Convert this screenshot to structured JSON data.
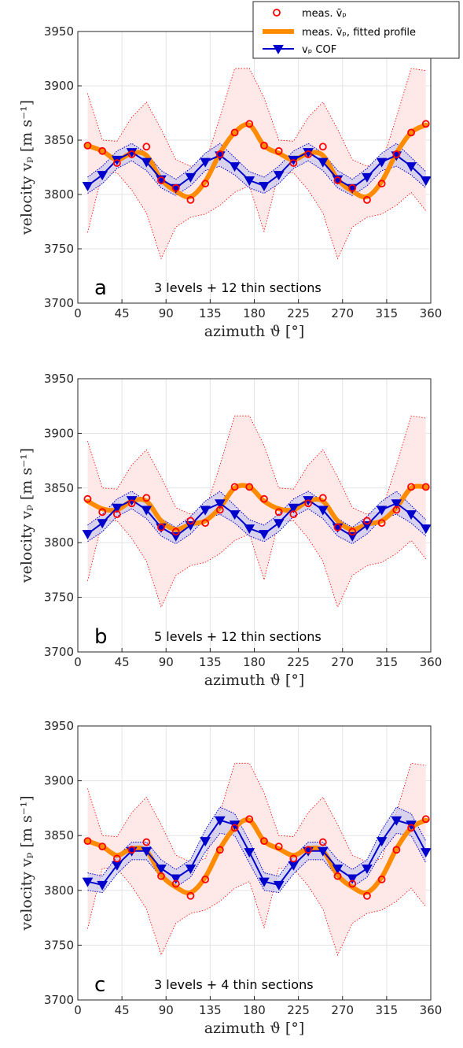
{
  "colors": {
    "measured": "#ff0000",
    "fitted": "#ff8c00",
    "cof": "#0000cc",
    "band": "#ffe8e8",
    "grid": "#e3e3e3"
  },
  "legend": {
    "entries": [
      "meas. v̄ₚ",
      "meas. v̄ₚ, fitted profile",
      "vₚ COF"
    ],
    "placement": "top-right"
  },
  "chart_data": [
    {
      "type": "line",
      "panel_letter": "a",
      "annotation": "3 levels + 12 thin sections",
      "xlabel": "azimuth ϑ [°]",
      "ylabel": "velocity vₚ [m s⁻¹]",
      "xlim": [
        0,
        360
      ],
      "ylim": [
        3700,
        3950
      ],
      "xticks": [
        "0",
        "45",
        "90",
        "135",
        "180",
        "225",
        "270",
        "315",
        "360"
      ],
      "yticks": [
        "3700",
        "3750",
        "3800",
        "3850",
        "3900",
        "3950"
      ],
      "grid": true,
      "measured": {
        "x": [
          10,
          25,
          40,
          55,
          70,
          85,
          100,
          115,
          130,
          145,
          160,
          175,
          190,
          205,
          220,
          235,
          250,
          265,
          280,
          295,
          310,
          325,
          340,
          355
        ],
        "y": [
          3845,
          3840,
          3829,
          3837,
          3844,
          3813,
          3806,
          3795,
          3810,
          3837,
          3857,
          3865,
          3845,
          3840,
          3829,
          3837,
          3844,
          3813,
          3806,
          3795,
          3810,
          3837,
          3857,
          3865
        ]
      },
      "band_upper": [
        3893,
        3850,
        3849,
        3871,
        3885,
        3860,
        3832,
        3826,
        3829,
        3871,
        3916,
        3916,
        3889,
        3850,
        3849,
        3871,
        3885,
        3860,
        3832,
        3826,
        3829,
        3871,
        3916,
        3914
      ],
      "band_lower": [
        3765,
        3820,
        3820,
        3804,
        3783,
        3741,
        3770,
        3779,
        3782,
        3790,
        3802,
        3808,
        3766,
        3820,
        3820,
        3804,
        3783,
        3741,
        3770,
        3779,
        3782,
        3790,
        3802,
        3785
      ],
      "fitted": {
        "x": [
          10,
          25,
          40,
          55,
          70,
          85,
          100,
          115,
          130,
          145,
          160,
          175,
          190,
          205,
          220,
          235,
          250,
          265,
          280,
          295,
          310,
          325,
          340,
          355
        ],
        "y": [
          3845,
          3840,
          3832,
          3838,
          3836,
          3814,
          3803,
          3798,
          3812,
          3838,
          3857,
          3864,
          3845,
          3838,
          3832,
          3838,
          3836,
          3814,
          3803,
          3798,
          3812,
          3838,
          3857,
          3864
        ]
      },
      "cof": {
        "x": [
          10,
          25,
          40,
          55,
          70,
          85,
          100,
          115,
          130,
          145,
          160,
          175,
          190,
          205,
          220,
          235,
          250,
          265,
          280,
          295,
          310,
          325,
          340,
          355
        ],
        "y": [
          3808,
          3818,
          3832,
          3839,
          3830,
          3814,
          3806,
          3816,
          3830,
          3836,
          3826,
          3813,
          3808,
          3818,
          3832,
          3839,
          3830,
          3814,
          3806,
          3816,
          3830,
          3836,
          3826,
          3813
        ],
        "upper": [
          3816,
          3826,
          3840,
          3847,
          3838,
          3822,
          3814,
          3824,
          3838,
          3847,
          3834,
          3821,
          3816,
          3826,
          3840,
          3847,
          3838,
          3822,
          3814,
          3824,
          3838,
          3847,
          3834,
          3821
        ],
        "lower": [
          3801,
          3810,
          3824,
          3831,
          3822,
          3806,
          3799,
          3808,
          3822,
          3826,
          3818,
          3806,
          3801,
          3810,
          3824,
          3831,
          3822,
          3806,
          3799,
          3808,
          3822,
          3826,
          3818,
          3806
        ]
      }
    },
    {
      "type": "line",
      "panel_letter": "b",
      "annotation": "5 levels + 12 thin sections",
      "xlabel": "azimuth ϑ [°]",
      "ylabel": "velocity vₚ [m s⁻¹]",
      "xlim": [
        0,
        360
      ],
      "ylim": [
        3700,
        3950
      ],
      "xticks": [
        "0",
        "45",
        "90",
        "135",
        "180",
        "225",
        "270",
        "315",
        "360"
      ],
      "yticks": [
        "3700",
        "3750",
        "3800",
        "3850",
        "3900",
        "3950"
      ],
      "grid": true,
      "measured": {
        "x": [
          10,
          25,
          40,
          55,
          70,
          85,
          100,
          115,
          130,
          145,
          160,
          175,
          190,
          205,
          220,
          235,
          250,
          265,
          280,
          295,
          310,
          325,
          340,
          355
        ],
        "y": [
          3840,
          3828,
          3826,
          3836,
          3841,
          3814,
          3810,
          3820,
          3818,
          3830,
          3851,
          3851,
          3840,
          3828,
          3826,
          3836,
          3841,
          3814,
          3810,
          3820,
          3818,
          3830,
          3851,
          3851
        ]
      },
      "band_upper": [
        3893,
        3850,
        3849,
        3871,
        3885,
        3860,
        3832,
        3826,
        3829,
        3871,
        3916,
        3916,
        3889,
        3850,
        3849,
        3871,
        3885,
        3860,
        3832,
        3826,
        3829,
        3871,
        3916,
        3914
      ],
      "band_lower": [
        3765,
        3820,
        3820,
        3804,
        3783,
        3741,
        3770,
        3779,
        3782,
        3790,
        3802,
        3808,
        3766,
        3820,
        3820,
        3804,
        3783,
        3741,
        3770,
        3779,
        3782,
        3790,
        3802,
        3785
      ],
      "fitted": {
        "x": [
          10,
          25,
          40,
          55,
          70,
          85,
          100,
          115,
          130,
          145,
          160,
          175,
          190,
          205,
          220,
          235,
          250,
          265,
          280,
          295,
          310,
          325,
          340,
          355
        ],
        "y": [
          3838,
          3831,
          3830,
          3838,
          3838,
          3820,
          3812,
          3817,
          3820,
          3832,
          3850,
          3851,
          3838,
          3831,
          3830,
          3838,
          3838,
          3820,
          3812,
          3817,
          3820,
          3832,
          3850,
          3851
        ]
      },
      "cof": {
        "x": [
          10,
          25,
          40,
          55,
          70,
          85,
          100,
          115,
          130,
          145,
          160,
          175,
          190,
          205,
          220,
          235,
          250,
          265,
          280,
          295,
          310,
          325,
          340,
          355
        ],
        "y": [
          3808,
          3818,
          3832,
          3839,
          3830,
          3814,
          3806,
          3816,
          3830,
          3836,
          3826,
          3813,
          3808,
          3818,
          3832,
          3839,
          3830,
          3814,
          3806,
          3816,
          3830,
          3836,
          3826,
          3813
        ],
        "upper": [
          3816,
          3826,
          3840,
          3847,
          3838,
          3822,
          3814,
          3824,
          3838,
          3847,
          3834,
          3821,
          3816,
          3826,
          3840,
          3847,
          3838,
          3822,
          3814,
          3824,
          3838,
          3847,
          3834,
          3821
        ],
        "lower": [
          3801,
          3810,
          3824,
          3831,
          3822,
          3806,
          3799,
          3808,
          3822,
          3826,
          3818,
          3806,
          3801,
          3810,
          3824,
          3831,
          3822,
          3806,
          3799,
          3808,
          3822,
          3826,
          3818,
          3806
        ]
      }
    },
    {
      "type": "line",
      "panel_letter": "c",
      "annotation": "3 levels + 4 thin sections",
      "xlabel": "azimuth ϑ [°]",
      "ylabel": "velocity vₚ [m s⁻¹]",
      "xlim": [
        0,
        360
      ],
      "ylim": [
        3700,
        3950
      ],
      "xticks": [
        "0",
        "45",
        "90",
        "135",
        "180",
        "225",
        "270",
        "315",
        "360"
      ],
      "yticks": [
        "3700",
        "3750",
        "3800",
        "3850",
        "3900",
        "3950"
      ],
      "grid": true,
      "measured": {
        "x": [
          10,
          25,
          40,
          55,
          70,
          85,
          100,
          115,
          130,
          145,
          160,
          175,
          190,
          205,
          220,
          235,
          250,
          265,
          280,
          295,
          310,
          325,
          340,
          355
        ],
        "y": [
          3845,
          3840,
          3829,
          3837,
          3844,
          3813,
          3806,
          3795,
          3810,
          3837,
          3857,
          3865,
          3845,
          3840,
          3829,
          3837,
          3844,
          3813,
          3806,
          3795,
          3810,
          3837,
          3857,
          3865
        ]
      },
      "band_upper": [
        3893,
        3850,
        3849,
        3871,
        3885,
        3860,
        3832,
        3826,
        3829,
        3871,
        3916,
        3916,
        3889,
        3850,
        3849,
        3871,
        3885,
        3860,
        3832,
        3826,
        3829,
        3871,
        3916,
        3914
      ],
      "band_lower": [
        3765,
        3820,
        3820,
        3804,
        3783,
        3741,
        3770,
        3779,
        3782,
        3790,
        3802,
        3808,
        3766,
        3820,
        3820,
        3804,
        3783,
        3741,
        3770,
        3779,
        3782,
        3790,
        3802,
        3785
      ],
      "fitted": {
        "x": [
          10,
          25,
          40,
          55,
          70,
          85,
          100,
          115,
          130,
          145,
          160,
          175,
          190,
          205,
          220,
          235,
          250,
          265,
          280,
          295,
          310,
          325,
          340,
          355
        ],
        "y": [
          3845,
          3840,
          3832,
          3838,
          3836,
          3814,
          3803,
          3798,
          3812,
          3838,
          3857,
          3864,
          3845,
          3838,
          3832,
          3838,
          3836,
          3814,
          3803,
          3798,
          3812,
          3838,
          3857,
          3864
        ]
      },
      "cof": {
        "x": [
          10,
          25,
          40,
          55,
          70,
          85,
          100,
          115,
          130,
          145,
          160,
          175,
          190,
          205,
          220,
          235,
          250,
          265,
          280,
          295,
          310,
          325,
          340,
          355
        ],
        "y": [
          3808,
          3805,
          3823,
          3836,
          3836,
          3820,
          3811,
          3820,
          3845,
          3864,
          3860,
          3835,
          3808,
          3805,
          3823,
          3836,
          3836,
          3820,
          3811,
          3820,
          3845,
          3864,
          3860,
          3835
        ],
        "upper": [
          3816,
          3813,
          3831,
          3844,
          3844,
          3828,
          3819,
          3828,
          3855,
          3876,
          3870,
          3845,
          3816,
          3813,
          3831,
          3844,
          3844,
          3828,
          3819,
          3828,
          3855,
          3876,
          3870,
          3845
        ],
        "lower": [
          3800,
          3798,
          3815,
          3828,
          3828,
          3812,
          3803,
          3812,
          3835,
          3852,
          3850,
          3825,
          3800,
          3798,
          3815,
          3828,
          3828,
          3812,
          3803,
          3812,
          3835,
          3852,
          3850,
          3825
        ]
      }
    }
  ]
}
